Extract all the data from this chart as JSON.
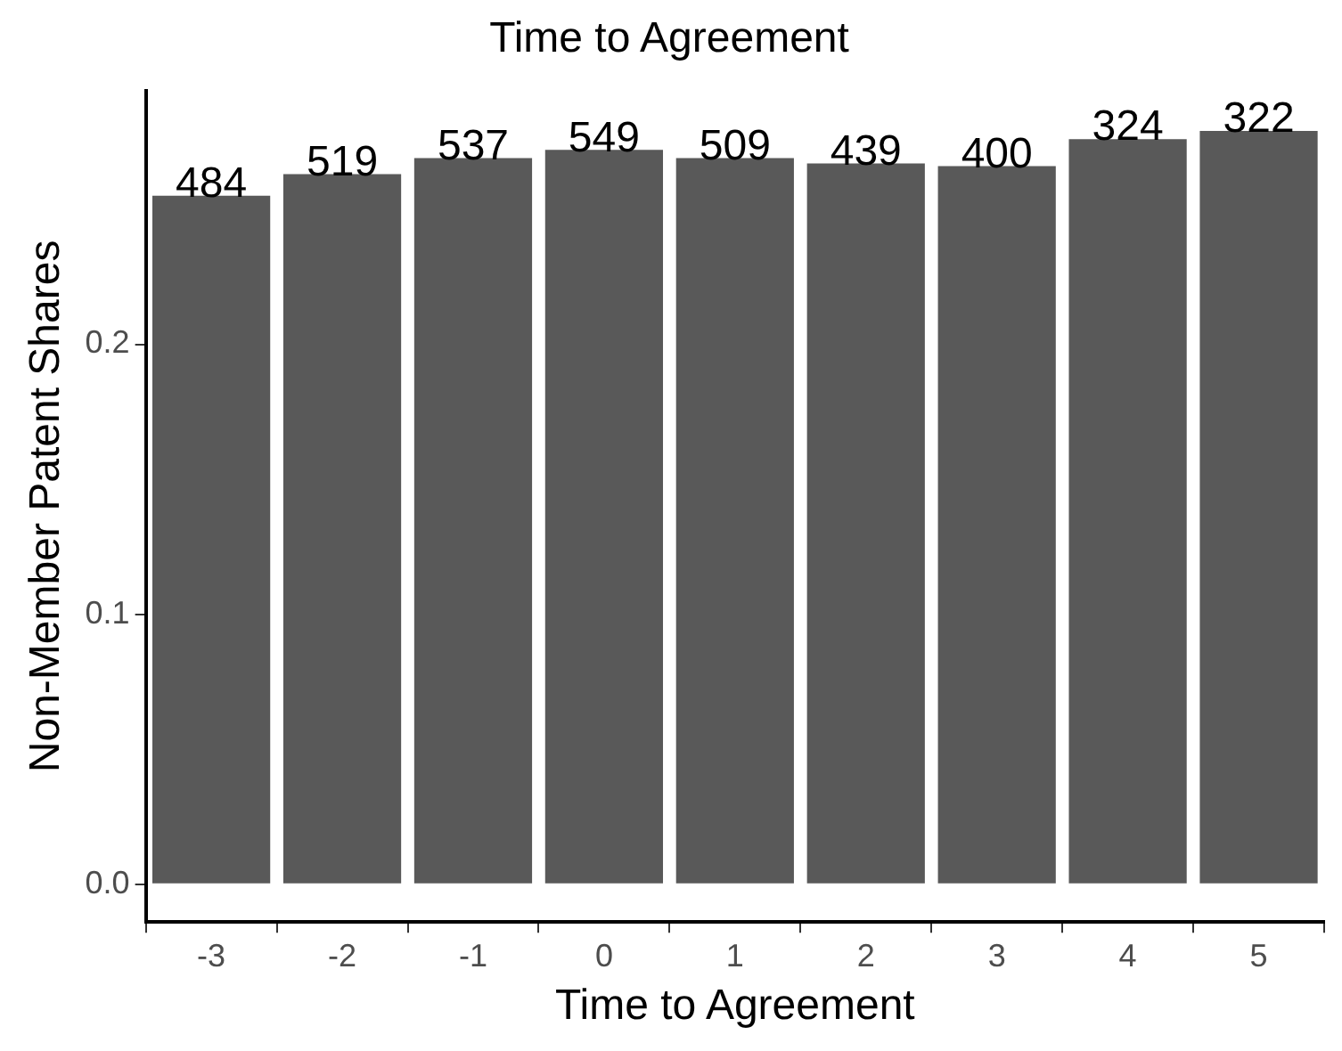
{
  "chart_data": {
    "type": "bar",
    "title": "Time to Agreement",
    "xlabel": "Time to Agreement",
    "ylabel": "Non-Member Patent Shares",
    "categories": [
      "-3",
      "-2",
      "-1",
      "0",
      "1",
      "2",
      "3",
      "4",
      "5"
    ],
    "values": [
      0.255,
      0.263,
      0.269,
      0.272,
      0.269,
      0.267,
      0.266,
      0.276,
      0.279
    ],
    "annotations": [
      {
        "text": "484",
        "x": "-3",
        "y": 0.255
      },
      {
        "text": "519",
        "x": "-2",
        "y": 0.263
      },
      {
        "text": "537",
        "x": "-1",
        "y": 0.269
      },
      {
        "text": "549",
        "x": "0",
        "y": 0.272
      },
      {
        "text": "509",
        "x": "1",
        "y": 0.269
      },
      {
        "text": "439",
        "x": "2",
        "y": 0.267
      },
      {
        "text": "400",
        "x": "3",
        "y": 0.266
      },
      {
        "text": "324",
        "x": "4",
        "y": 0.276
      },
      {
        "text": "322",
        "x": "5",
        "y": 0.279
      }
    ],
    "color": "#595959",
    "ylim": [
      -0.014,
      0.294
    ],
    "yticks": [
      {
        "value": 0,
        "label": "0.0"
      },
      {
        "value": 0.1,
        "label": "0.1"
      },
      {
        "value": 0.2,
        "label": "0.2"
      }
    ]
  }
}
